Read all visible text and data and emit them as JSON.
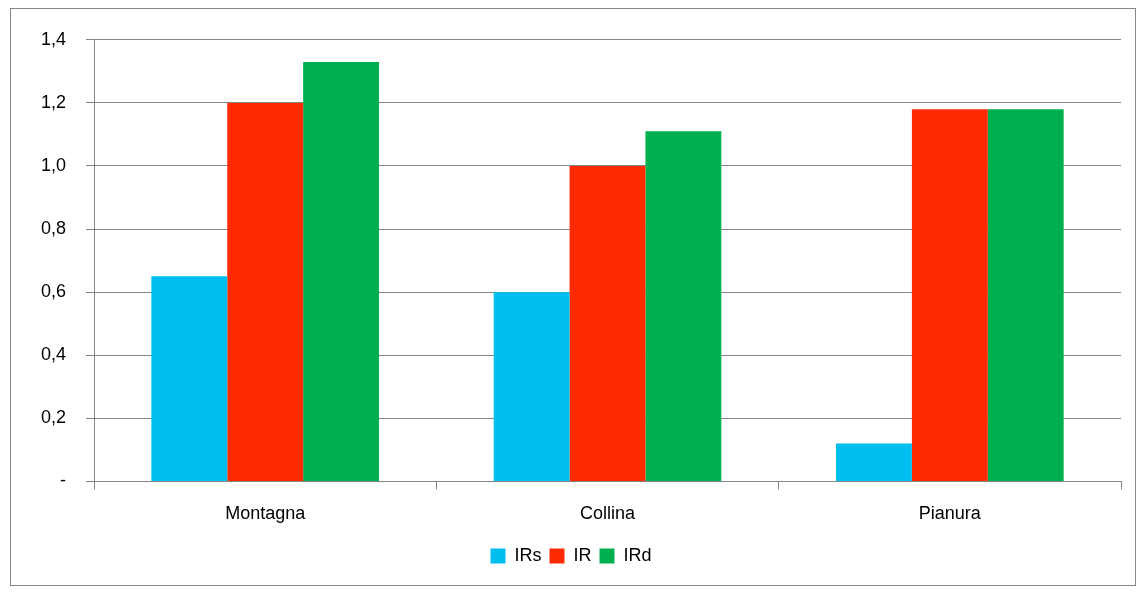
{
  "chart_data": {
    "type": "bar",
    "categories": [
      "Montagna",
      "Collina",
      "Pianura"
    ],
    "series": [
      {
        "name": "IRs",
        "color": "#00bfef",
        "values": [
          0.65,
          0.6,
          0.12
        ]
      },
      {
        "name": "IR",
        "color": "#ff2a00",
        "values": [
          1.2,
          1.0,
          1.18
        ]
      },
      {
        "name": "IRd",
        "color": "#00b050",
        "values": [
          1.33,
          1.11,
          1.18
        ]
      }
    ],
    "ylim": [
      0,
      1.4
    ],
    "yticks": [
      {
        "value": 0,
        "label": "-"
      },
      {
        "value": 0.2,
        "label": "0,2"
      },
      {
        "value": 0.4,
        "label": "0,4"
      },
      {
        "value": 0.6,
        "label": "0,6"
      },
      {
        "value": 0.8,
        "label": "0,8"
      },
      {
        "value": 1.0,
        "label": "1,0"
      },
      {
        "value": 1.2,
        "label": "1,2"
      },
      {
        "value": 1.4,
        "label": "1,4"
      }
    ],
    "grid": "y",
    "legend": "bottom"
  }
}
